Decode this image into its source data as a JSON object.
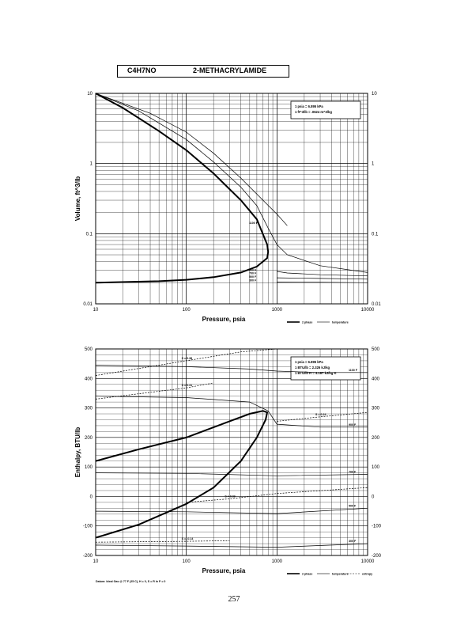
{
  "header": {
    "formula": "C4H7NO",
    "name": "2-METHACRYLAMIDE"
  },
  "page_number": "257",
  "chart_data": [
    {
      "type": "line",
      "xscale": "log",
      "yscale": "log",
      "xlabel": "Pressure,  psia",
      "ylabel": "Volume, ft^3/lb",
      "xlim": [
        10,
        10000
      ],
      "ylim": [
        0.01,
        10
      ],
      "x_ticks": [
        "10",
        "100",
        "1000",
        "10000"
      ],
      "y_ticks": [
        "0.01",
        "0.1",
        "1",
        "10"
      ],
      "y_ticks_right": [
        "0.01",
        "0.1",
        "1",
        "10"
      ],
      "grid": true,
      "conversion_box": [
        "1 psia  =  6.895 kPa",
        "1 ft^3/lb  =  .0624 m^3/kg"
      ],
      "legend": [
        "2 phase",
        "temperature"
      ],
      "series": [
        {
          "name": "2 phase",
          "points": [
            [
              10,
              10
            ],
            [
              20,
              6.2
            ],
            [
              50,
              2.9
            ],
            [
              100,
              1.55
            ],
            [
              200,
              0.72
            ],
            [
              400,
              0.3
            ],
            [
              600,
              0.16
            ],
            [
              780,
              0.07
            ],
            [
              800,
              0.055
            ],
            [
              780,
              0.045
            ],
            [
              600,
              0.034
            ],
            [
              400,
              0.028
            ],
            [
              200,
              0.024
            ],
            [
              100,
              0.022
            ],
            [
              50,
              0.021
            ],
            [
              10,
              0.02
            ]
          ]
        },
        {
          "name": "1100 F",
          "label": "1100 F",
          "points": [
            [
              10,
              10
            ],
            [
              40,
              5.2
            ],
            [
              100,
              2.8
            ],
            [
              200,
              1.4
            ],
            [
              400,
              0.62
            ],
            [
              700,
              0.3
            ],
            [
              1000,
              0.19
            ],
            [
              1300,
              0.13
            ]
          ]
        },
        {
          "name": "900 F",
          "label": "900 F",
          "points": [
            [
              10,
              10
            ],
            [
              30,
              5.6
            ],
            [
              100,
              2.2
            ],
            [
              200,
              1.05
            ],
            [
              400,
              0.46
            ],
            [
              600,
              0.25
            ],
            [
              800,
              0.12
            ],
            [
              1000,
              0.07
            ],
            [
              1300,
              0.05
            ],
            [
              3000,
              0.035
            ],
            [
              10000,
              0.028
            ]
          ]
        },
        {
          "name": "700 F",
          "label": "700 F",
          "points": [
            [
              1000,
              0.029
            ],
            [
              1300,
              0.0275
            ],
            [
              3000,
              0.026
            ],
            [
              10000,
              0.025
            ]
          ]
        },
        {
          "name": "500 F",
          "label": "500 F",
          "points": [
            [
              1000,
              0.0235
            ],
            [
              3000,
              0.023
            ],
            [
              10000,
              0.0225
            ]
          ]
        },
        {
          "name": "300 F",
          "label": "300 F",
          "points": [
            [
              1000,
              0.0205
            ],
            [
              3000,
              0.0203
            ],
            [
              10000,
              0.02
            ]
          ]
        }
      ]
    },
    {
      "type": "line",
      "xscale": "log",
      "yscale": "linear",
      "xlabel": "Pressure,  psia",
      "ylabel": "Enthalpy, BTU/lb",
      "xlim": [
        10,
        10000
      ],
      "ylim": [
        -200,
        500
      ],
      "x_ticks": [
        "10",
        "100",
        "1000",
        "10000"
      ],
      "y_ticks": [
        "-200",
        "-100",
        "0",
        "100",
        "200",
        "300",
        "400",
        "500"
      ],
      "y_ticks_right": [
        "-200",
        "-100",
        "0",
        "100",
        "200",
        "300",
        "400",
        "500"
      ],
      "grid": true,
      "conversion_box": [
        "1 psia  =  6.895 kPa",
        "1 BTU/lb  =  2.326 kJ/kg",
        "1 BTU/lb R  =  4.187 kJ/kg K"
      ],
      "legend": [
        "2 phase",
        "temperature",
        "entropy"
      ],
      "footnote": "Datum: Ideal Gas @ 77 F (25 C),  H = 0,  S = R ln P = 0",
      "series": [
        {
          "name": "2 phase",
          "points": [
            [
              10,
              -140
            ],
            [
              30,
              -95
            ],
            [
              100,
              -25
            ],
            [
              200,
              30
            ],
            [
              400,
              120
            ],
            [
              600,
              200
            ],
            [
              750,
              260
            ],
            [
              780,
              285
            ],
            [
              700,
              290
            ],
            [
              500,
              280
            ],
            [
              300,
              255
            ],
            [
              100,
              200
            ],
            [
              30,
              160
            ],
            [
              10,
              120
            ]
          ]
        },
        {
          "name": "1100 F",
          "label": "1100 F",
          "points": [
            [
              10,
              445
            ],
            [
              100,
              440
            ],
            [
              500,
              432
            ],
            [
              1000,
              425
            ],
            [
              3000,
              420
            ],
            [
              10000,
              420
            ]
          ]
        },
        {
          "name": "900 F",
          "label": "900 F",
          "points": [
            [
              10,
              340
            ],
            [
              100,
              335
            ],
            [
              500,
              320
            ],
            [
              800,
              290
            ],
            [
              1000,
              245
            ],
            [
              3000,
              235
            ],
            [
              10000,
              235
            ]
          ]
        },
        {
          "name": "700 F",
          "label": "700 F",
          "points": [
            [
              10,
              80
            ],
            [
              100,
              78
            ],
            [
              1000,
              70
            ],
            [
              10000,
              75
            ]
          ]
        },
        {
          "name": "500 F",
          "label": "500 F",
          "points": [
            [
              10,
              -50
            ],
            [
              100,
              -52
            ],
            [
              1000,
              -58
            ],
            [
              10000,
              -40
            ]
          ]
        },
        {
          "name": "300 F",
          "label": "300 F",
          "points": [
            [
              10,
              -165
            ],
            [
              100,
              -168
            ],
            [
              1000,
              -172
            ],
            [
              10000,
              -160
            ]
          ]
        },
        {
          "name": "S = 0.38",
          "label": "S = 0.38",
          "points": [
            [
              10,
              410
            ],
            [
              100,
              460
            ],
            [
              400,
              490
            ],
            [
              1000,
              500
            ]
          ]
        },
        {
          "name": "S = 0.31",
          "label": "S = 0.31",
          "points": [
            [
              10,
              330
            ],
            [
              100,
              368
            ],
            [
              200,
              385
            ]
          ]
        },
        {
          "name": "S = 0.24",
          "label": "S = 0.24",
          "points": [
            [
              1000,
              255
            ],
            [
              3000,
              270
            ],
            [
              10000,
              285
            ]
          ]
        },
        {
          "name": "S = 0.06",
          "label": "S = 0.06",
          "points": [
            [
              100,
              -20
            ],
            [
              300,
              -8
            ],
            [
              1000,
              10
            ],
            [
              10000,
              30
            ]
          ]
        },
        {
          "name": "S = -0.14",
          "label": "S = -0.14",
          "points": [
            [
              10,
              -155
            ],
            [
              100,
              -152
            ],
            [
              300,
              -150
            ]
          ]
        }
      ]
    }
  ]
}
